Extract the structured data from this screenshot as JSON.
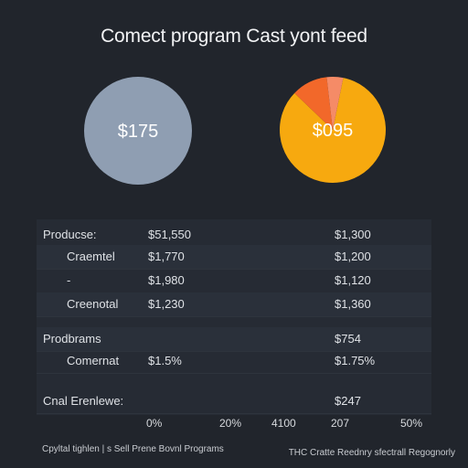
{
  "title": "Comect program Cast yont feed",
  "chart_data": [
    {
      "type": "pie",
      "center_label": "$175",
      "slices": [
        {
          "value": 100,
          "color": "#8f9eb2"
        }
      ]
    },
    {
      "type": "pie",
      "center_label": "$095",
      "slices": [
        {
          "value": 84,
          "color": "#f7a90f"
        },
        {
          "value": 11,
          "color": "#f2682a"
        },
        {
          "value": 5,
          "color": "#f58b67"
        }
      ]
    },
    {
      "type": "table",
      "rows": [
        {
          "label": "Producse:",
          "col1": "$51,550",
          "col2": "$1,300",
          "indent": false
        },
        {
          "label": "Craemtel",
          "col1": "$1,770",
          "col2": "$1,200",
          "indent": true
        },
        {
          "label": "-",
          "col1": "$1,980",
          "col2": "$1,120",
          "indent": true
        },
        {
          "label": "Creenotal",
          "col1": "$1,230",
          "col2": "$1,360",
          "indent": true
        },
        {
          "label": "",
          "col1": "",
          "col2": "",
          "indent": false
        },
        {
          "label": "Prodbrams",
          "col1": "",
          "col2": "$754",
          "indent": false
        },
        {
          "label": "Comernat",
          "col1": "$1.5%",
          "col2": "$1.75%",
          "indent": true
        },
        {
          "label": "",
          "col1": "",
          "col2": "",
          "indent": false
        },
        {
          "label": "Cnal Erenlewe:",
          "col1": "",
          "col2": "$247",
          "indent": false
        }
      ],
      "axis_ticks": [
        "0%",
        "20%",
        "4100",
        "207",
        "50%"
      ]
    }
  ],
  "footer": {
    "left": "Cpyltal tighlen | s Sell Prene Bovnl Programs",
    "right": "THC Cratte Reednry sfectrall Regognorly"
  }
}
